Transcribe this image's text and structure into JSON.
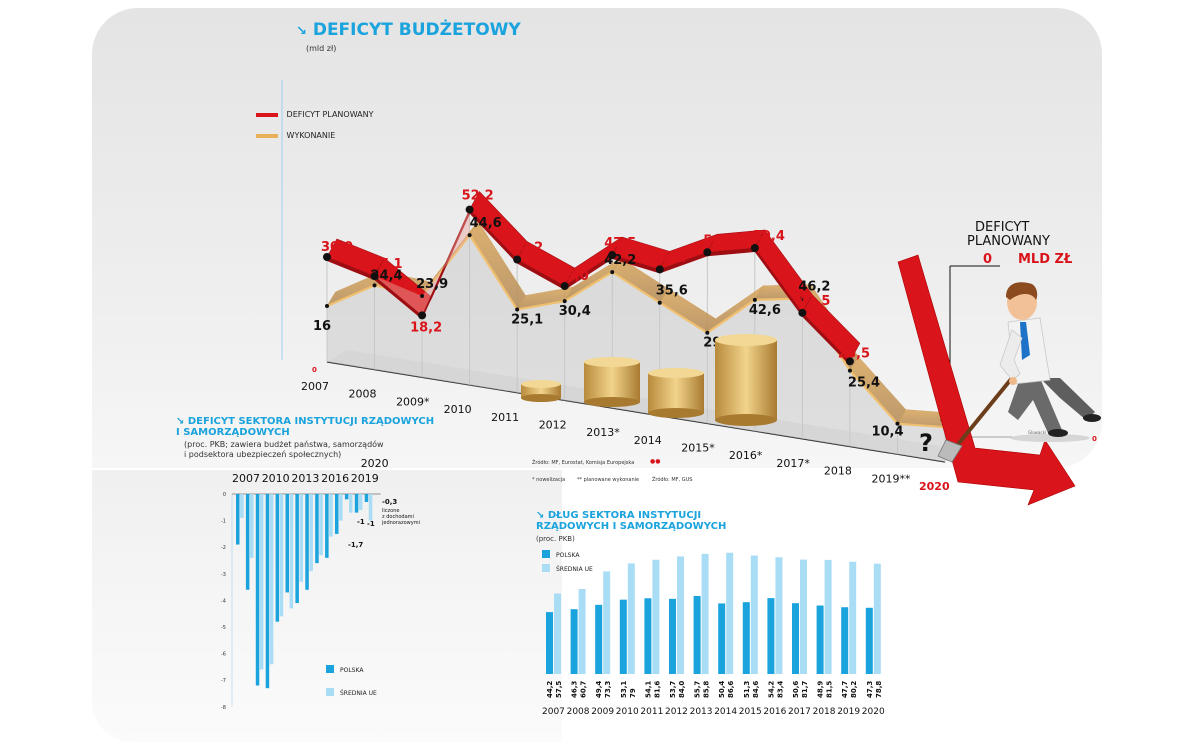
{
  "main": {
    "title": "DEFICYT BUDŻETOWY",
    "unit": "(mld zł)",
    "legend": [
      {
        "label": "DEFICYT PLANOWANY",
        "color": "#d9141b"
      },
      {
        "label": "WYKONANIE",
        "color": "#e8b05a"
      }
    ],
    "zero_label": "0",
    "footnote_source1": "Źródło: MF, Eurostat, Komisja Europejska",
    "footnote_nowelizacja": "* nowelizacja",
    "footnote_planowane": "** planowane wykonanie",
    "footnote_source2": "Źródło: MF, GUS",
    "callout_line1": "DEFICYT",
    "callout_line2": "PLANOWANY",
    "callout_zero": "0",
    "callout_unit": "MLD ZŁ",
    "question": "?",
    "right_zero": "0",
    "signature": "Glowacki"
  },
  "chart_data": [
    {
      "type": "line",
      "title": "DEFICYT BUDŻETOWY",
      "subtitle": "(mld zł)",
      "categories": [
        "2007",
        "2008",
        "2009*",
        "2010",
        "2011",
        "2012",
        "2013*",
        "2014",
        "2015*",
        "2016*",
        "2017*",
        "2018",
        "2019**",
        "2020"
      ],
      "series": [
        {
          "name": "DEFICYT PLANOWANY",
          "labels": [
            "30,0",
            "27,1",
            "18,2",
            "52,2",
            "40,2",
            "35,0",
            "47,5",
            "46,1",
            "54,7",
            "59,4",
            "41,5",
            "28,5",
            "0",
            ""
          ],
          "values": [
            30.0,
            27.1,
            18.2,
            52.2,
            40.2,
            35.0,
            47.5,
            46.1,
            54.7,
            59.4,
            41.5,
            28.5,
            0,
            null
          ]
        },
        {
          "name": "WYKONANIE",
          "labels": [
            "16",
            "24,4",
            "23,9",
            "44,6",
            "25,1",
            "30,4",
            "42,2",
            "35,6",
            "29",
            "42,6",
            "46,2",
            "25,4",
            "10,4",
            "12"
          ],
          "values": [
            16,
            24.4,
            23.9,
            44.6,
            25.1,
            30.4,
            42.2,
            35.6,
            29,
            42.6,
            46.2,
            25.4,
            10.4,
            12
          ]
        }
      ]
    },
    {
      "type": "bar",
      "title": "DEFICYT SEKTORA INSTYTUCJI RZĄDOWYCH I SAMORZĄDOWYCH",
      "subtitle": "(proc. PKB; zawiera budżet państwa, samorządów i podsektora ubezpieczeń społecznych)",
      "x_ticks": [
        "2007",
        "2010",
        "2013",
        "2016",
        "2019",
        "2020"
      ],
      "y_ticks": [
        "0",
        "-1",
        "-2",
        "-3",
        "-4",
        "-5",
        "-6",
        "-7",
        "-8"
      ],
      "ylim": [
        -8,
        0
      ],
      "categories": [
        "2007",
        "2008",
        "2009",
        "2010",
        "2011",
        "2012",
        "2013",
        "2014",
        "2015",
        "2016",
        "2017",
        "2018",
        "2019",
        "2020"
      ],
      "series": [
        {
          "name": "POLSKA",
          "color": "#1aa3dc",
          "values": [
            -1.9,
            -3.6,
            -7.2,
            -7.3,
            -4.8,
            -3.7,
            -4.1,
            -3.6,
            -2.6,
            -2.4,
            -1.5,
            -0.2,
            -0.7,
            -0.3
          ]
        },
        {
          "name": "ŚREDNIA UE",
          "color": "#a9dcf5",
          "values": [
            -0.9,
            -2.4,
            -6.6,
            -6.4,
            -4.6,
            -4.3,
            -3.3,
            -2.9,
            -2.3,
            -1.6,
            -1.0,
            -0.7,
            -0.6,
            -1.0
          ]
        }
      ],
      "annotations": [
        "-0,3",
        "liczone",
        "z dochodami",
        "jednorazowymi",
        "-1",
        "-1",
        "-1,7"
      ],
      "legend": [
        "POLSKA",
        "ŚREDNIA UE"
      ]
    },
    {
      "type": "bar",
      "title": "DŁUG SEKTORA INSTYTUCJI RZĄDOWYCH I SAMORZĄDOWYCH",
      "subtitle": "(proc. PKB)",
      "categories": [
        "2007",
        "2008",
        "2009",
        "2010",
        "2011",
        "2012",
        "2013",
        "2014",
        "2015",
        "2016",
        "2017",
        "2018",
        "2019",
        "2020"
      ],
      "series": [
        {
          "name": "POLSKA",
          "color": "#1aa3dc",
          "labels": [
            "44,2",
            "46,3",
            "49,4",
            "53,1",
            "54,1",
            "53,7",
            "55,7",
            "50,4",
            "51,3",
            "54,2",
            "50,6",
            "48,9",
            "47,7",
            "47,3"
          ],
          "values": [
            44.2,
            46.3,
            49.4,
            53.1,
            54.1,
            53.7,
            55.7,
            50.4,
            51.3,
            54.2,
            50.6,
            48.9,
            47.7,
            47.3
          ]
        },
        {
          "name": "ŚREDNIA UE",
          "color": "#a9dcf5",
          "labels": [
            "57,5",
            "60,7",
            "73,3",
            "79",
            "81,6",
            "84,0",
            "85,8",
            "86,6",
            "84,6",
            "83,4",
            "81,7",
            "81,5",
            "80,2",
            "78,8"
          ],
          "values": [
            57.5,
            60.7,
            73.3,
            79,
            81.6,
            84.0,
            85.8,
            86.6,
            84.6,
            83.4,
            81.7,
            81.5,
            80.2,
            78.8
          ]
        }
      ],
      "legend": [
        "POLSKA",
        "ŚREDNIA UE"
      ]
    }
  ]
}
